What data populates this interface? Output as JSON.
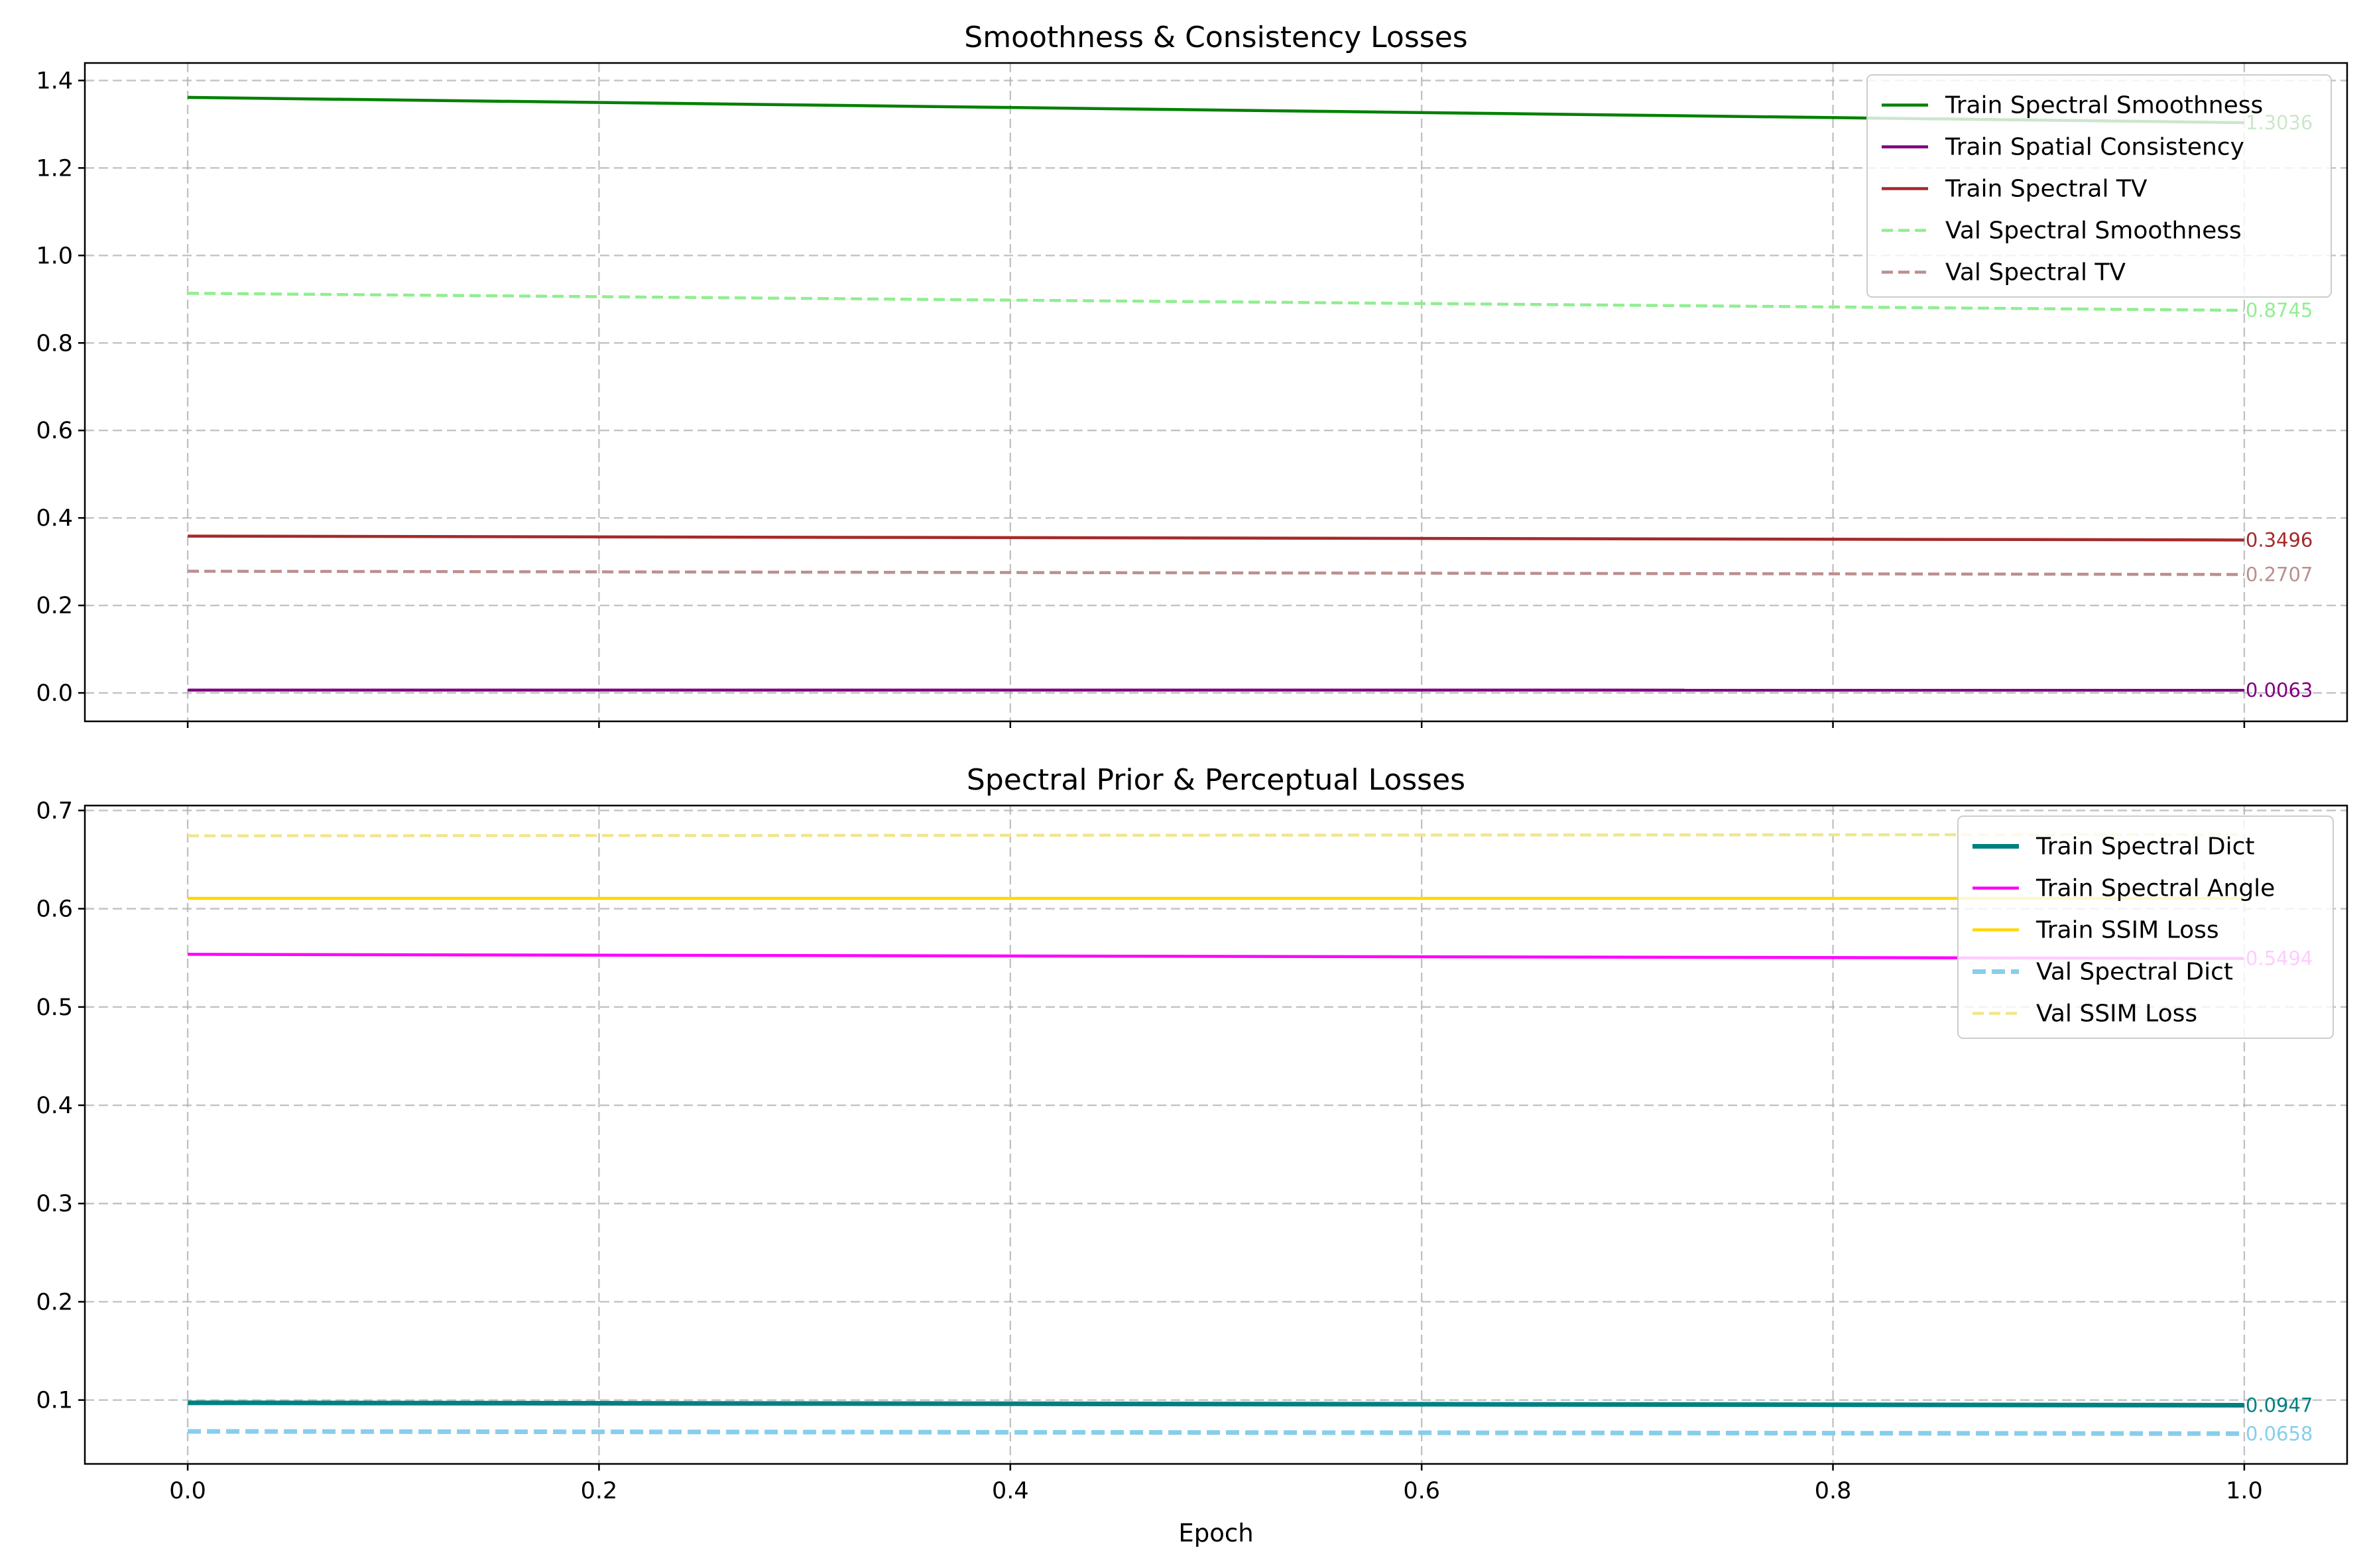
{
  "chart_data": [
    {
      "type": "line",
      "title": "Smoothness & Consistency Losses",
      "xlabel": "",
      "ylabel": "",
      "xlim": [
        -0.05,
        1.05
      ],
      "ylim": [
        -0.065,
        1.44
      ],
      "xticks": [],
      "yticks": [
        "0.0",
        "0.2",
        "0.4",
        "0.6",
        "0.8",
        "1.0",
        "1.2",
        "1.4"
      ],
      "ytick_values": [
        0,
        0.2,
        0.4,
        0.6,
        0.8,
        1.0,
        1.2,
        1.4
      ],
      "grid": true,
      "legend_position": "upper right",
      "x": [
        0,
        1
      ],
      "series": [
        {
          "name": "Train Spectral Smoothness",
          "values": [
            1.3613,
            1.3036
          ],
          "color": "#008000",
          "style": "solid",
          "end_label": "1.3036"
        },
        {
          "name": "Train Spatial Consistency",
          "values": [
            0.0064,
            0.0063
          ],
          "color": "#800080",
          "style": "solid",
          "end_label": "0.0063"
        },
        {
          "name": "Train Spectral TV",
          "values": [
            0.3585,
            0.3496
          ],
          "color": "#a52a2a",
          "style": "solid",
          "end_label": "0.3496"
        },
        {
          "name": "Val Spectral Smoothness",
          "values": [
            0.9136,
            0.8745
          ],
          "color": "#90ee90",
          "style": "dashed",
          "end_label": "0.8745"
        },
        {
          "name": "Val Spectral TV",
          "values": [
            0.2782,
            0.2707
          ],
          "color": "#bc8f8f",
          "style": "dashed",
          "end_label": "0.2707"
        }
      ]
    },
    {
      "type": "line",
      "title": "Spectral Prior & Perceptual Losses",
      "xlabel": "Epoch",
      "ylabel": "",
      "xlim": [
        -0.05,
        1.05
      ],
      "ylim": [
        0.035,
        0.705
      ],
      "xticks": [
        "0.0",
        "0.2",
        "0.4",
        "0.6",
        "0.8",
        "1.0"
      ],
      "xtick_values": [
        0,
        0.2,
        0.4,
        0.6,
        0.8,
        1.0
      ],
      "yticks": [
        "0.1",
        "0.2",
        "0.3",
        "0.4",
        "0.5",
        "0.6",
        "0.7"
      ],
      "ytick_values": [
        0.1,
        0.2,
        0.3,
        0.4,
        0.5,
        0.6,
        0.7
      ],
      "grid": true,
      "legend_position": "upper right",
      "x": [
        0,
        1
      ],
      "series": [
        {
          "name": "Train Spectral Dict",
          "values": [
            0.0972,
            0.0947
          ],
          "color": "#008080",
          "style": "solid-thick",
          "end_label": "0.0947"
        },
        {
          "name": "Train Spectral Angle",
          "values": [
            0.5536,
            0.5494
          ],
          "color": "#ff00ff",
          "style": "solid",
          "end_label": "0.5494"
        },
        {
          "name": "Train SSIM Loss",
          "values": [
            0.6105,
            0.6105
          ],
          "color": "#ffd700",
          "style": "solid",
          "end_label": ""
        },
        {
          "name": "Val Spectral Dict",
          "values": [
            0.0681,
            0.0658
          ],
          "color": "#87ceeb",
          "style": "dashed-thick",
          "end_label": "0.0658"
        },
        {
          "name": "Val SSIM Loss",
          "values": [
            0.6742,
            0.6755
          ],
          "color": "#f0e68c",
          "style": "dashed",
          "end_label": ""
        }
      ]
    }
  ]
}
